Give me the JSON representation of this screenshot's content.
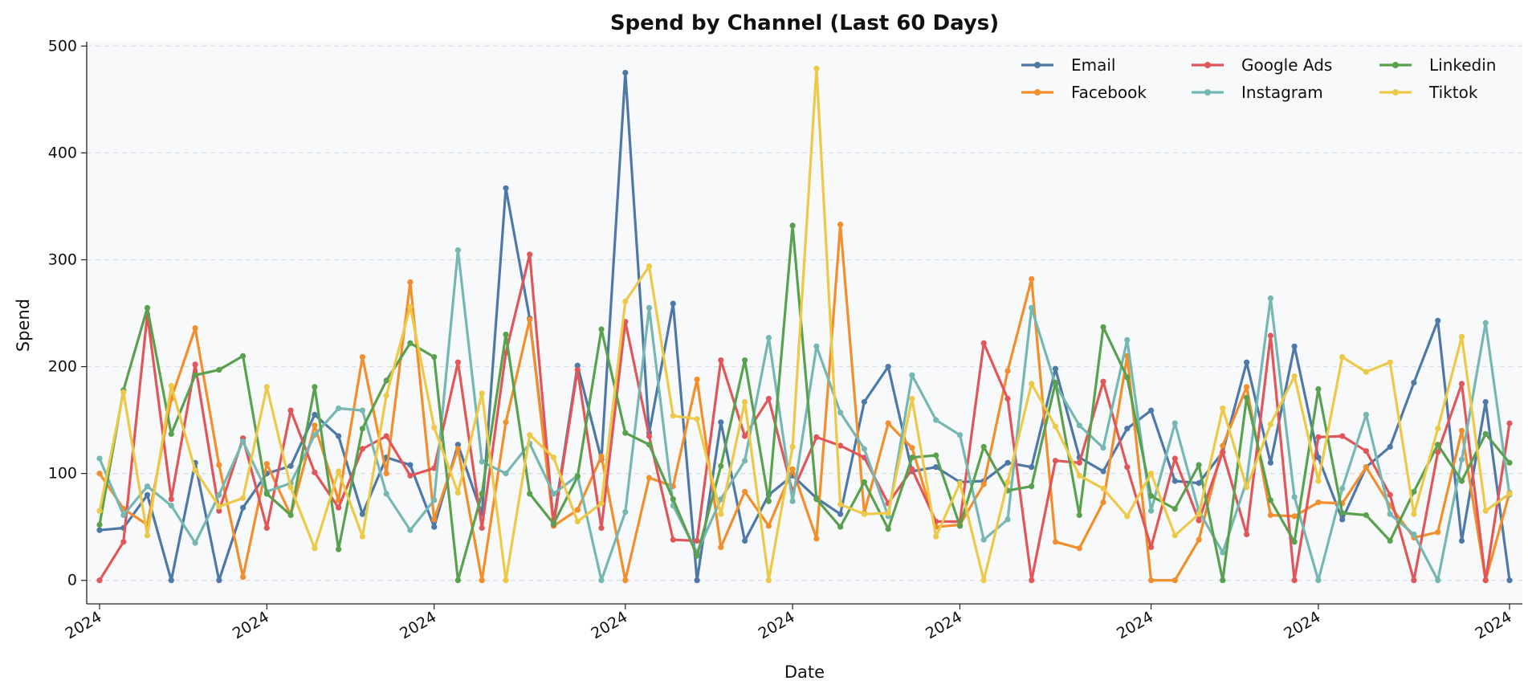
{
  "chart_data": {
    "type": "line",
    "title": "Spend by Channel (Last 60 Days)",
    "xlabel": "Date",
    "ylabel": "Spend",
    "ylim": [
      -22,
      504
    ],
    "yticks": [
      0,
      100,
      200,
      300,
      400,
      500
    ],
    "x_tick_labels": [
      "2024",
      "2024",
      "2024",
      "2024",
      "2024",
      "2024",
      "2024",
      "2024",
      "2024"
    ],
    "x_tick_days": [
      0,
      7,
      14,
      22,
      29,
      36,
      44,
      51,
      59
    ],
    "grid": "horizontal-dashed",
    "legend": "top-right",
    "series": [
      {
        "name": "Email",
        "color": "#4e79a7",
        "values": [
          47,
          49,
          80,
          0,
          110,
          0,
          68,
          100,
          107,
          155,
          135,
          62,
          115,
          108,
          50,
          127,
          62,
          367,
          245,
          55,
          201,
          113,
          475,
          138,
          259,
          0,
          148,
          37,
          80,
          98,
          77,
          62,
          167,
          200,
          102,
          106,
          92,
          93,
          110,
          106,
          198,
          115,
          102,
          142,
          159,
          93,
          91,
          120,
          204,
          110,
          219,
          115,
          57,
          106,
          125,
          185,
          243,
          37,
          167,
          0
        ]
      },
      {
        "name": "Facebook",
        "color": "#f28e2b",
        "values": [
          100,
          67,
          52,
          170,
          236,
          108,
          3,
          109,
          61,
          145,
          75,
          209,
          100,
          279,
          57,
          123,
          0,
          148,
          244,
          51,
          66,
          116,
          0,
          96,
          88,
          188,
          31,
          83,
          51,
          104,
          39,
          333,
          63,
          147,
          124,
          50,
          52,
          90,
          196,
          282,
          36,
          30,
          73,
          210,
          0,
          0,
          38,
          126,
          181,
          61,
          60,
          73,
          72,
          106,
          70,
          40,
          45,
          140,
          0,
          82
        ]
      },
      {
        "name": "Google Ads",
        "color": "#e15759",
        "values": [
          0,
          36,
          249,
          76,
          202,
          65,
          133,
          49,
          159,
          101,
          68,
          123,
          135,
          98,
          105,
          204,
          49,
          213,
          305,
          52,
          197,
          49,
          242,
          135,
          38,
          37,
          206,
          135,
          170,
          83,
          134,
          126,
          115,
          72,
          104,
          55,
          55,
          222,
          170,
          0,
          112,
          110,
          186,
          106,
          31,
          114,
          56,
          120,
          43,
          229,
          0,
          134,
          135,
          121,
          80,
          0,
          120,
          184,
          0,
          147
        ]
      },
      {
        "name": "Instagram",
        "color": "#76b7b2",
        "values": [
          114,
          61,
          88,
          70,
          35,
          80,
          130,
          83,
          91,
          136,
          161,
          159,
          81,
          47,
          75,
          309,
          111,
          100,
          128,
          81,
          98,
          0,
          64,
          255,
          70,
          26,
          76,
          112,
          227,
          74,
          219,
          157,
          123,
          60,
          192,
          150,
          136,
          38,
          57,
          255,
          183,
          145,
          124,
          225,
          65,
          147,
          65,
          26,
          93,
          264,
          78,
          0,
          86,
          155,
          62,
          43,
          0,
          113,
          241,
          80
        ]
      },
      {
        "name": "Linkedin",
        "color": "#59a14f",
        "values": [
          52,
          178,
          255,
          137,
          192,
          197,
          210,
          81,
          61,
          181,
          29,
          142,
          187,
          222,
          209,
          0,
          81,
          230,
          81,
          53,
          97,
          235,
          138,
          127,
          76,
          23,
          107,
          206,
          74,
          332,
          76,
          50,
          92,
          48,
          115,
          117,
          51,
          125,
          84,
          88,
          185,
          61,
          237,
          190,
          79,
          67,
          108,
          0,
          171,
          75,
          36,
          179,
          63,
          61,
          37,
          83,
          127,
          93,
          137,
          110
        ]
      },
      {
        "name": "Tiktok",
        "color": "#edc948",
        "values": [
          65,
          176,
          42,
          182,
          103,
          69,
          77,
          181,
          87,
          30,
          102,
          41,
          173,
          256,
          143,
          82,
          175,
          0,
          136,
          115,
          55,
          72,
          261,
          294,
          154,
          151,
          62,
          167,
          0,
          125,
          479,
          71,
          62,
          63,
          170,
          41,
          91,
          0,
          92,
          184,
          144,
          98,
          86,
          60,
          100,
          42,
          62,
          161,
          87,
          146,
          191,
          93,
          209,
          195,
          204,
          62,
          142,
          228,
          65,
          81
        ]
      }
    ]
  }
}
